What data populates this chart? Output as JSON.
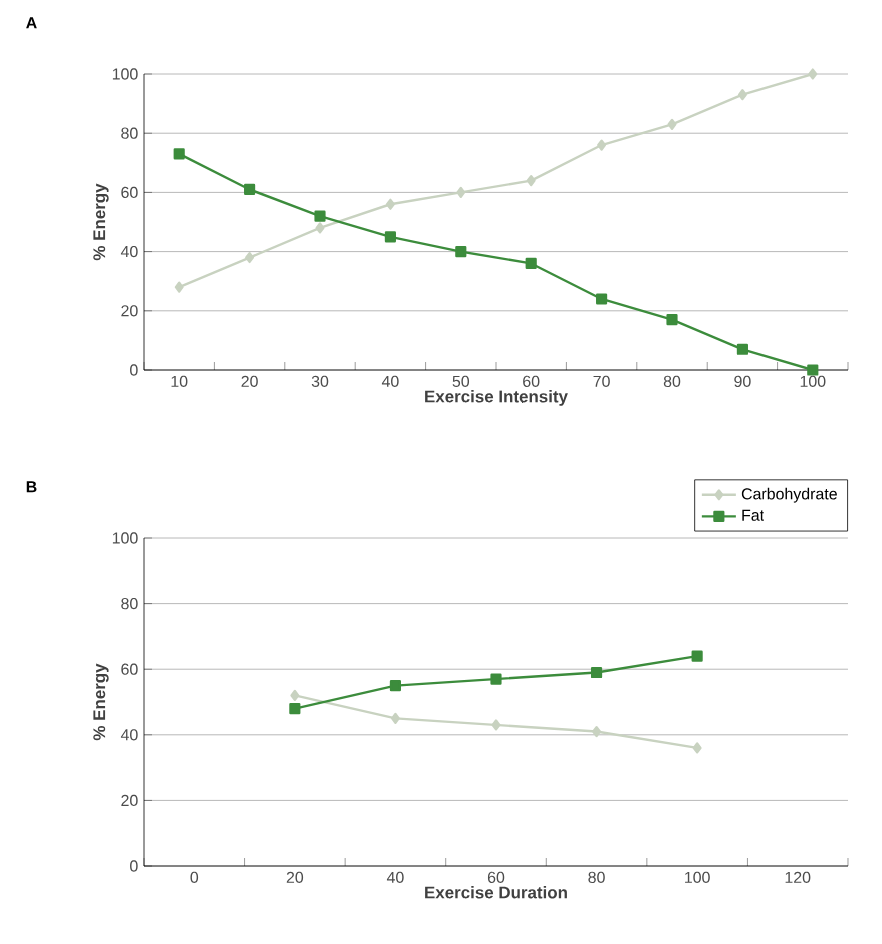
{
  "chart_data": [
    {
      "type": "line",
      "title": "A",
      "xlabel": "Exercise Intensity",
      "ylabel": "% Energy",
      "categories": [
        "10",
        "20",
        "30",
        "40",
        "50",
        "60",
        "70",
        "80",
        "90",
        "100"
      ],
      "series": [
        {
          "color": "#c8d2c0",
          "marker": "diamond",
          "values": [
            28,
            38,
            48,
            56,
            60,
            64,
            76,
            83,
            93,
            100
          ]
        },
        {
          "color": "#3c8c3c",
          "marker": "square",
          "values": [
            73,
            61,
            52,
            45,
            40,
            36,
            24,
            17,
            7,
            0
          ]
        }
      ],
      "ylim": [
        0,
        100
      ],
      "yticks": [
        0,
        20,
        40,
        60,
        80,
        100
      ],
      "grid": "y"
    },
    {
      "type": "line",
      "title": "B",
      "xlabel": "Exercise Duration",
      "ylabel": "% Energy",
      "categories": [
        "0",
        "20",
        "40",
        "60",
        "80",
        "100",
        "120"
      ],
      "series": [
        {
          "name": "Carbohydrate",
          "color": "#c8d2c0",
          "marker": "diamond",
          "values": [
            null,
            52,
            45,
            43,
            41,
            36,
            null
          ]
        },
        {
          "name": "Fat",
          "color": "#3c8c3c",
          "marker": "square",
          "values": [
            null,
            48,
            55,
            57,
            59,
            64,
            null
          ]
        }
      ],
      "ylim": [
        0,
        100
      ],
      "yticks": [
        0,
        20,
        40,
        60,
        80,
        100
      ],
      "grid": "y",
      "legend": "top right"
    }
  ]
}
